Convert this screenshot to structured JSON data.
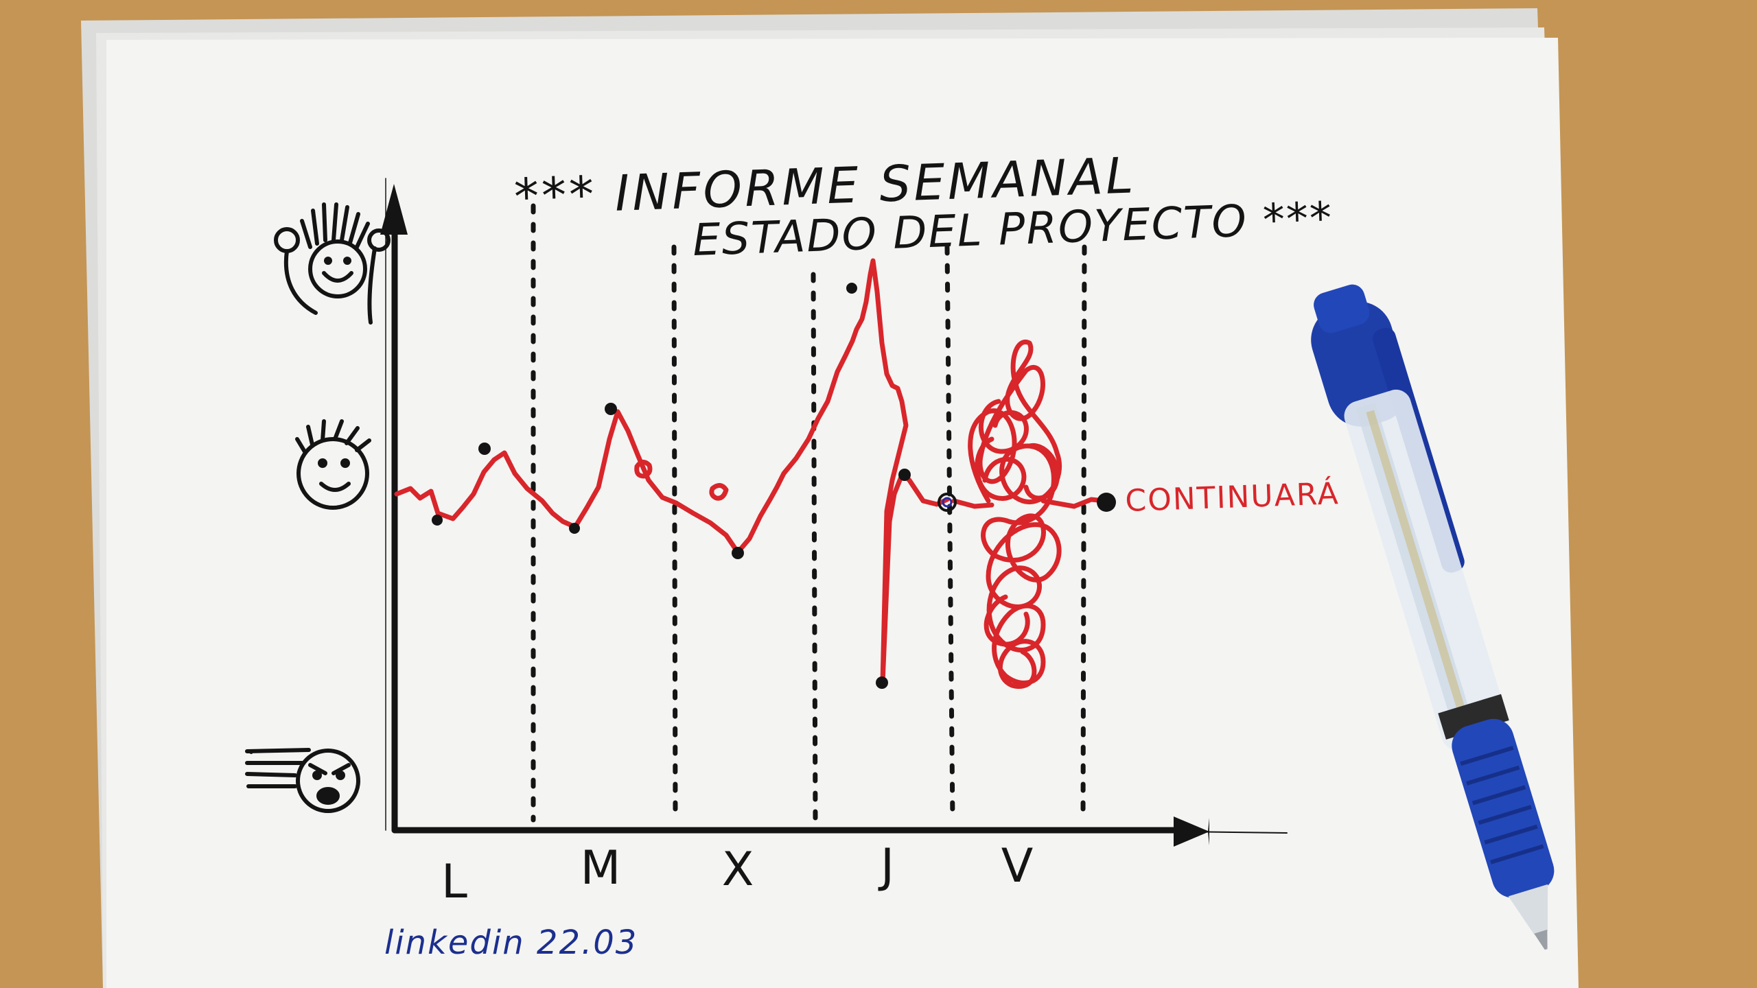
{
  "title": {
    "line1": "*** INFORME SEMANAL",
    "line2": "ESTADO DEL PROYECTO ***"
  },
  "days": [
    "L",
    "M",
    "X",
    "J",
    "V"
  ],
  "annotation": "CONTINUARÁ",
  "signature": "linkedin 22.03",
  "colors": {
    "desk": "#c99a5a",
    "paper": "#f4f4f2",
    "ink": "#141414",
    "red": "#d8262b",
    "blue_ink": "#1c2f8f",
    "pen_blue": "#1f3fa8"
  },
  "faces": {
    "top": "happy-celebrating-face-icon",
    "middle": "neutral-smiling-face-icon",
    "bottom": "angry-face-icon"
  }
}
